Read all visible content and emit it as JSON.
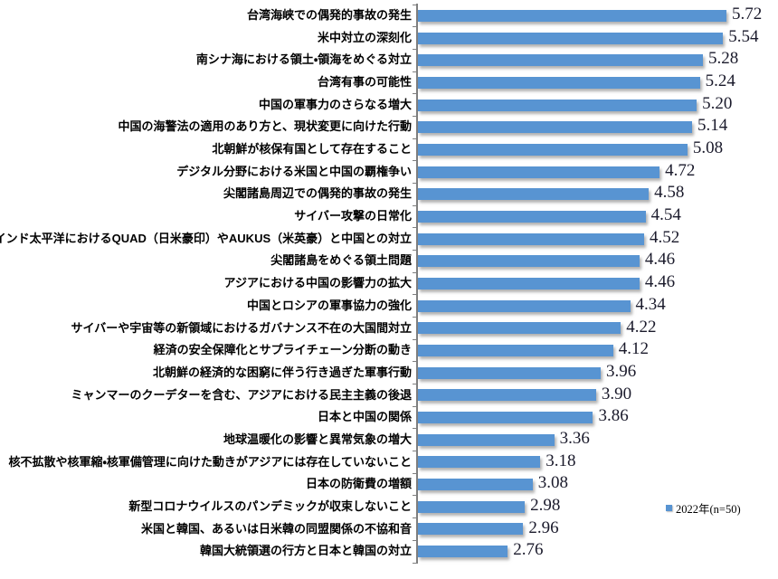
{
  "chart_data": {
    "type": "bar",
    "orientation": "horizontal",
    "title": "",
    "xlabel": "",
    "ylabel": "",
    "grid": false,
    "xlim": [
      1.6,
      5.8
    ],
    "legend_position": "bottom-right",
    "bar_color": "#5894D2",
    "categories": [
      "台湾海峡での偶発的事故の発生",
      "米中対立の深刻化",
      "南シナ海における領土・領海をめぐる対立",
      "台湾有事の可能性",
      "中国の軍事力のさらなる増大",
      "中国の海警法の適用のあり方と、現状変更に向けた行動",
      "北朝鮮が核保有国として存在すること",
      "デジタル分野における米国と中国の覇権争い",
      "尖閣諸島周辺での偶発的事故の発生",
      "サイバー攻撃の日常化",
      "インド太平洋におけるQUAD（日米豪印）やAUKUS（米英豪）と中国との対立",
      "尖閣諸島をめぐる領土問題",
      "アジアにおける中国の影響力の拡大",
      "中国とロシアの軍事協力の強化",
      "サイバーや宇宙等の新領域におけるガバナンス不在の大国間対立",
      "経済の安全保障化とサプライチェーン分断の動き",
      "北朝鮮の経済的な困窮に伴う行き過ぎた軍事行動",
      "ミャンマーのクーデターを含む、アジアにおける民主主義の後退",
      "日本と中国の関係",
      "地球温暖化の影響と異常気象の増大",
      "核不拡散や核軍縮・核軍備管理に向けた動きがアジアには存在していないこと",
      "日本の防衛費の増額",
      "新型コロナウイルスのパンデミックが収束しないこと",
      "米国と韓国、あるいは日米韓の同盟関係の不協和音",
      "韓国大統領選の行方と日本と韓国の対立"
    ],
    "series": [
      {
        "name": "2022年(n=50)",
        "values": [
          5.72,
          5.54,
          5.28,
          5.24,
          5.2,
          5.14,
          5.08,
          4.72,
          4.58,
          4.54,
          4.52,
          4.46,
          4.46,
          4.34,
          4.22,
          4.12,
          3.96,
          3.9,
          3.86,
          3.36,
          3.18,
          3.08,
          2.98,
          2.96,
          2.76
        ],
        "value_labels": [
          "5.72",
          "5.54",
          "5.28",
          "5.24",
          "5.20",
          "5.14",
          "5.08",
          "4.72",
          "4.58",
          "4.54",
          "4.52",
          "4.46",
          "4.46",
          "4.34",
          "4.22",
          "4.12",
          "3.96",
          "3.90",
          "3.86",
          "3.36",
          "3.18",
          "3.08",
          "2.98",
          "2.96",
          "2.76"
        ]
      }
    ]
  },
  "colors": {
    "bar": "#5894D2",
    "axis_line": "#7F7F7F",
    "value_text": "#1A1A2B",
    "category_text": "#000000"
  }
}
